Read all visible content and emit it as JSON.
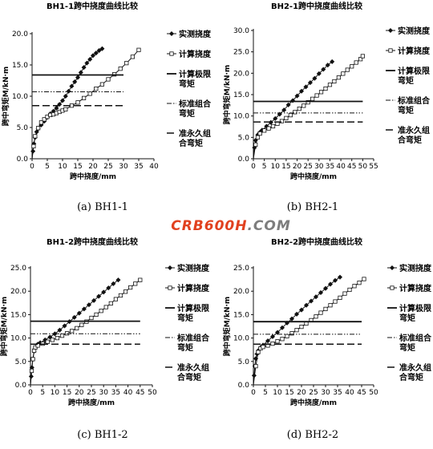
{
  "figure": {
    "watermark": "CRB600H.COM",
    "panel_caption_labels": [
      "(a) BH1-1",
      "(b) BH2-1",
      "(c) BH1-2",
      "(d) BH2-2"
    ]
  },
  "styles": {
    "ink": "#111111",
    "watermark_red": "#e1411f",
    "watermark_gray": "#7d7d7d"
  },
  "legend_entries": [
    {
      "label": "实测挠度",
      "line": "solid",
      "marker": "filled-diamond"
    },
    {
      "label": "计算挠度",
      "line": "solid",
      "marker": "hollow-square"
    },
    {
      "label": "计算极限弯矩",
      "line": "solid-thick",
      "marker": "none"
    },
    {
      "label": "标准组合弯矩",
      "line": "dash-dot-dot",
      "marker": "none"
    },
    {
      "label": "准永久组合弯矩",
      "line": "long-dash",
      "marker": "none"
    }
  ],
  "chart_data": [
    {
      "id": "bh1-1",
      "type": "line",
      "title": "BH1-1跨中挠度曲线比较",
      "xlabel": "跨中挠度/mm",
      "ylabel": "跨中弯矩M/kN·m",
      "xlim": [
        0,
        40
      ],
      "ylim": [
        0,
        20
      ],
      "xticks": [
        0,
        5,
        10,
        15,
        20,
        25,
        30,
        35,
        40
      ],
      "yticks": [
        0.0,
        5.0,
        10.0,
        15.0,
        20.0
      ],
      "ytick_labels": [
        "0.0",
        "5.0",
        "10.0",
        "15.0",
        "20.0"
      ],
      "caption": "(a) BH1-1",
      "legend": "right",
      "series": [
        {
          "name": "实测挠度",
          "x": [
            0,
            0.3,
            0.6,
            1,
            1.5,
            2,
            3,
            4,
            5,
            6,
            7,
            8,
            9,
            10,
            11,
            12,
            13,
            14,
            15,
            16,
            17,
            18,
            19,
            20,
            21,
            22,
            23
          ],
          "y": [
            0,
            1.2,
            2.4,
            3.4,
            4.3,
            4.8,
            5.4,
            6.0,
            6.6,
            7.2,
            7.6,
            8.1,
            8.7,
            9.3,
            10.0,
            10.8,
            11.6,
            12.3,
            13.0,
            13.8,
            14.6,
            15.3,
            15.9,
            16.5,
            16.9,
            17.3,
            17.6
          ]
        },
        {
          "name": "计算挠度",
          "x": [
            0,
            0.5,
            1,
            2,
            3,
            4,
            5,
            6,
            7,
            8,
            9,
            10,
            11,
            13,
            15,
            17,
            19,
            21,
            23,
            25,
            27,
            29,
            31,
            33,
            35
          ],
          "y": [
            0,
            2.0,
            3.6,
            4.9,
            5.8,
            6.3,
            6.7,
            7.0,
            7.1,
            7.3,
            7.5,
            7.7,
            7.9,
            8.5,
            9.0,
            9.7,
            10.4,
            11.2,
            11.9,
            12.7,
            13.5,
            14.4,
            15.3,
            16.3,
            17.4
          ]
        },
        {
          "name": "计算极限弯矩",
          "x": [
            0,
            30
          ],
          "y": [
            13.4,
            13.4
          ]
        },
        {
          "name": "标准组合弯矩",
          "x": [
            0,
            30
          ],
          "y": [
            10.7,
            10.7
          ]
        },
        {
          "name": "准永久组合弯矩",
          "x": [
            0,
            30
          ],
          "y": [
            8.5,
            8.5
          ]
        }
      ]
    },
    {
      "id": "bh2-1",
      "type": "line",
      "title": "BH2-1跨中挠度曲线比较",
      "xlabel": "跨中挠度/mm",
      "ylabel": "跨中弯矩M/kN·m",
      "xlim": [
        0,
        55
      ],
      "ylim": [
        0,
        30
      ],
      "xticks": [
        0,
        5,
        10,
        15,
        20,
        25,
        30,
        35,
        40,
        45,
        50,
        55
      ],
      "yticks": [
        0.0,
        5.0,
        10.0,
        15.0,
        20.0,
        25.0,
        30.0
      ],
      "ytick_labels": [
        "0.0",
        "5.0",
        "10.0",
        "15.0",
        "20.0",
        "25.0",
        "30.0"
      ],
      "caption": "(b) BH2-1",
      "legend": "right",
      "series": [
        {
          "name": "实测挠度",
          "x": [
            0,
            0.5,
            1,
            2,
            3,
            4,
            6,
            8,
            10,
            12,
            14,
            16,
            18,
            20,
            22,
            24,
            26,
            28,
            30,
            32,
            34,
            36
          ],
          "y": [
            0,
            2.6,
            4.3,
            5.6,
            6.2,
            6.7,
            7.6,
            8.5,
            9.4,
            10.4,
            11.4,
            12.6,
            13.6,
            14.7,
            15.8,
            16.8,
            17.8,
            18.8,
            19.9,
            20.9,
            21.9,
            22.7
          ]
        },
        {
          "name": "计算挠度",
          "x": [
            0,
            1,
            2,
            3,
            5,
            7,
            9,
            11,
            13,
            15,
            17,
            19,
            21,
            23,
            25,
            27,
            29,
            31,
            33,
            35,
            37,
            39,
            41,
            43,
            45,
            47,
            49,
            50
          ],
          "y": [
            0,
            3.3,
            5.0,
            5.9,
            6.6,
            7.1,
            7.6,
            8.2,
            8.8,
            9.5,
            10.2,
            10.9,
            11.7,
            12.4,
            13.2,
            14.0,
            14.8,
            15.6,
            16.4,
            17.3,
            18.1,
            19.0,
            19.9,
            20.8,
            21.6,
            22.5,
            23.3,
            24.0
          ]
        },
        {
          "name": "计算极限弯矩",
          "x": [
            0,
            50
          ],
          "y": [
            13.4,
            13.4
          ]
        },
        {
          "name": "标准组合弯矩",
          "x": [
            0,
            50
          ],
          "y": [
            10.7,
            10.7
          ]
        },
        {
          "name": "准永久组合弯矩",
          "x": [
            0,
            50
          ],
          "y": [
            8.6,
            8.6
          ]
        }
      ]
    },
    {
      "id": "bh1-2",
      "type": "line",
      "title": "BH1-2跨中挠度曲线比较",
      "xlabel": "跨中挠度/mm",
      "ylabel": "跨中弯矩M/kN·m",
      "xlim": [
        0,
        50
      ],
      "ylim": [
        0,
        25
      ],
      "xticks": [
        0,
        5,
        10,
        15,
        20,
        25,
        30,
        35,
        40,
        45,
        50
      ],
      "yticks": [
        0.0,
        5.0,
        10.0,
        15.0,
        20.0,
        25.0
      ],
      "ytick_labels": [
        "0.0",
        "5.0",
        "10.0",
        "15.0",
        "20.0",
        "25.0"
      ],
      "caption": "(c) BH1-2",
      "legend": "right",
      "series": [
        {
          "name": "实测挠度",
          "x": [
            0,
            0.3,
            0.6,
            1,
            1.5,
            2,
            3,
            4,
            6,
            8,
            10,
            12,
            14,
            16,
            18,
            20,
            22,
            24,
            26,
            28,
            30,
            32,
            34,
            36
          ],
          "y": [
            0,
            1.8,
            3.7,
            5.5,
            7.2,
            8.0,
            8.7,
            9.0,
            9.6,
            10.2,
            10.9,
            11.7,
            12.6,
            13.5,
            14.4,
            15.3,
            16.2,
            17.1,
            18.0,
            18.9,
            19.8,
            20.7,
            21.6,
            22.4
          ]
        },
        {
          "name": "计算挠度",
          "x": [
            0,
            0.5,
            1,
            1.5,
            2,
            3,
            5,
            7,
            9,
            11,
            13,
            15,
            17,
            19,
            21,
            23,
            25,
            27,
            29,
            31,
            33,
            35,
            37,
            39,
            41,
            43,
            45
          ],
          "y": [
            0,
            3.0,
            5.5,
            7.3,
            8.0,
            8.4,
            8.8,
            9.2,
            9.6,
            10.0,
            10.5,
            11.0,
            11.5,
            12.1,
            12.8,
            13.5,
            14.3,
            15.0,
            15.8,
            16.6,
            17.4,
            18.3,
            19.1,
            19.9,
            20.8,
            21.6,
            22.4
          ]
        },
        {
          "name": "计算极限弯矩",
          "x": [
            0,
            45
          ],
          "y": [
            13.6,
            13.6
          ]
        },
        {
          "name": "标准组合弯矩",
          "x": [
            0,
            45
          ],
          "y": [
            10.9,
            10.9
          ]
        },
        {
          "name": "准永久组合弯矩",
          "x": [
            0,
            45
          ],
          "y": [
            8.7,
            8.7
          ]
        }
      ]
    },
    {
      "id": "bh2-2",
      "type": "line",
      "title": "BH2-2跨中挠度曲线比较",
      "xlabel": "跨中挠度/mm",
      "ylabel": "跨中弯矩M/kN·m",
      "xlim": [
        0,
        50
      ],
      "ylim": [
        0,
        25
      ],
      "xticks": [
        0,
        5,
        10,
        15,
        20,
        25,
        30,
        35,
        40,
        45,
        50
      ],
      "yticks": [
        0.0,
        5.0,
        10.0,
        15.0,
        20.0,
        25.0
      ],
      "ytick_labels": [
        "0.0",
        "5.0",
        "10.0",
        "15.0",
        "20.0",
        "25.0"
      ],
      "caption": "(d) BH2-2",
      "legend": "right",
      "series": [
        {
          "name": "实测挠度",
          "x": [
            0,
            0.3,
            0.6,
            1,
            1.5,
            2,
            3,
            4,
            6,
            8,
            10,
            12,
            14,
            16,
            18,
            20,
            22,
            24,
            26,
            28,
            30,
            32,
            34,
            36
          ],
          "y": [
            0,
            2.0,
            4.0,
            5.6,
            6.6,
            7.3,
            8.0,
            8.5,
            9.4,
            10.3,
            11.2,
            12.2,
            13.2,
            14.1,
            15.1,
            16.0,
            17.0,
            17.9,
            18.8,
            19.7,
            20.6,
            21.5,
            22.3,
            23.0
          ]
        },
        {
          "name": "计算挠度",
          "x": [
            0,
            1,
            2,
            3,
            4,
            6,
            8,
            10,
            12,
            14,
            16,
            18,
            20,
            22,
            24,
            26,
            28,
            30,
            32,
            34,
            36,
            38,
            40,
            42,
            44,
            46
          ],
          "y": [
            0,
            4.0,
            7.0,
            7.8,
            8.1,
            8.4,
            8.8,
            9.3,
            9.8,
            10.4,
            11.0,
            11.7,
            12.4,
            13.1,
            13.8,
            14.6,
            15.4,
            16.2,
            17.0,
            17.8,
            18.6,
            19.5,
            20.3,
            21.1,
            21.8,
            22.6
          ]
        },
        {
          "name": "计算极限弯矩",
          "x": [
            0,
            45
          ],
          "y": [
            13.5,
            13.5
          ]
        },
        {
          "name": "标准组合弯矩",
          "x": [
            0,
            45
          ],
          "y": [
            10.8,
            10.8
          ]
        },
        {
          "name": "准永久组合弯矩",
          "x": [
            0,
            45
          ],
          "y": [
            8.7,
            8.7
          ]
        }
      ]
    }
  ]
}
